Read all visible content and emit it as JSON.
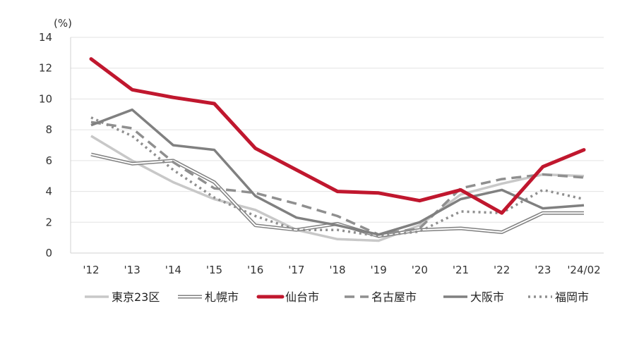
{
  "chart_data": {
    "type": "line",
    "unit_label": "(%)",
    "categories": [
      "'12",
      "'13",
      "'14",
      "'15",
      "'16",
      "'17",
      "'18",
      "'19",
      "'20",
      "'21",
      "'22",
      "'23",
      "'24/02"
    ],
    "ylim": [
      0,
      14
    ],
    "yticks": [
      0,
      2,
      4,
      6,
      8,
      10,
      12,
      14
    ],
    "grid": true,
    "legend_position": "bottom",
    "series": [
      {
        "name": "東京23区",
        "color": "#c8c8c8",
        "style": "solid",
        "values": [
          7.6,
          6.0,
          4.6,
          3.5,
          2.8,
          1.5,
          0.9,
          0.8,
          1.8,
          3.8,
          4.5,
          5.1,
          5.0
        ]
      },
      {
        "name": "札幌市",
        "color": "#808080",
        "style": "double",
        "values": [
          6.4,
          5.8,
          6.0,
          4.6,
          1.8,
          1.5,
          1.9,
          1.1,
          1.5,
          1.6,
          1.35,
          2.6,
          2.6
        ]
      },
      {
        "name": "仙台市",
        "color": "#c0172e",
        "style": "solid-thick",
        "values": [
          12.6,
          10.6,
          10.1,
          9.7,
          6.8,
          5.4,
          4.0,
          3.9,
          3.4,
          4.1,
          2.6,
          5.6,
          6.7
        ]
      },
      {
        "name": "名古屋市",
        "color": "#8f8f8f",
        "style": "dashed",
        "values": [
          8.5,
          8.1,
          5.9,
          4.2,
          3.9,
          3.2,
          2.4,
          1.2,
          1.6,
          4.2,
          4.8,
          5.1,
          4.9
        ]
      },
      {
        "name": "大阪市",
        "color": "#808080",
        "style": "solid",
        "values": [
          8.3,
          9.3,
          7.0,
          6.7,
          3.7,
          2.3,
          1.8,
          1.2,
          2.0,
          3.5,
          4.1,
          2.9,
          3.1
        ]
      },
      {
        "name": "福岡市",
        "color": "#8f8f8f",
        "style": "dotted",
        "values": [
          8.8,
          7.6,
          5.4,
          3.6,
          2.4,
          1.5,
          1.5,
          1.1,
          1.4,
          2.7,
          2.6,
          4.1,
          3.5
        ]
      }
    ]
  }
}
